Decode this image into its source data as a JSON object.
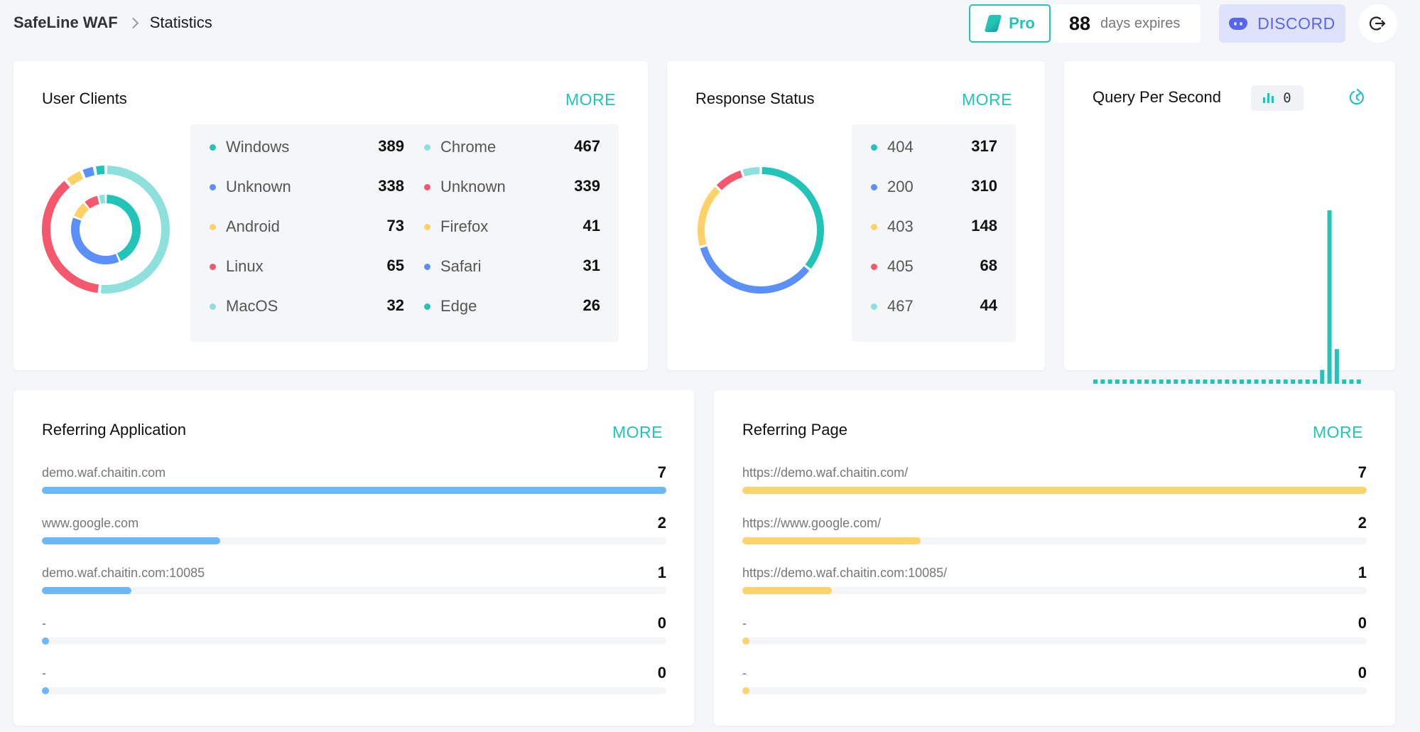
{
  "header": {
    "app_name": "SafeLine WAF",
    "page": "Statistics",
    "pro_label": "Pro",
    "days_count": "88",
    "days_label": "days expires",
    "discord_label": "DISCORD"
  },
  "colors": {
    "accent": "#23c4b8",
    "blue": "#5b8ff9",
    "yellow": "#ffd166",
    "red": "#f5576c",
    "light_teal": "#8ee0dd",
    "ref_app_bar": "#6bb8fb",
    "ref_page_bar": "#ffd36b"
  },
  "user_clients": {
    "title": "User Clients",
    "more": "MORE",
    "os": [
      {
        "name": "Windows",
        "value": 389,
        "color": "#23c4b8"
      },
      {
        "name": "Unknown",
        "value": 338,
        "color": "#5b8ff9"
      },
      {
        "name": "Android",
        "value": 73,
        "color": "#ffd166"
      },
      {
        "name": "Linux",
        "value": 65,
        "color": "#f5576c"
      },
      {
        "name": "MacOS",
        "value": 32,
        "color": "#8ee0dd"
      }
    ],
    "browsers": [
      {
        "name": "Chrome",
        "value": 467,
        "color": "#8ee0dd"
      },
      {
        "name": "Unknown",
        "value": 339,
        "color": "#f5576c"
      },
      {
        "name": "Firefox",
        "value": 41,
        "color": "#ffd166"
      },
      {
        "name": "Safari",
        "value": 31,
        "color": "#5b8ff9"
      },
      {
        "name": "Edge",
        "value": 26,
        "color": "#23c4b8"
      }
    ]
  },
  "response_status": {
    "title": "Response Status",
    "more": "MORE",
    "items": [
      {
        "name": "404",
        "value": 317,
        "color": "#23c4b8"
      },
      {
        "name": "200",
        "value": 310,
        "color": "#5b8ff9"
      },
      {
        "name": "403",
        "value": 148,
        "color": "#ffd166"
      },
      {
        "name": "405",
        "value": 68,
        "color": "#f5576c"
      },
      {
        "name": "467",
        "value": 44,
        "color": "#8ee0dd"
      }
    ]
  },
  "qps": {
    "title": "Query Per Second",
    "current": "0",
    "bars": [
      1,
      1,
      1,
      1,
      1,
      1,
      1,
      1,
      1,
      1,
      1,
      1,
      1,
      1,
      1,
      1,
      1,
      1,
      1,
      1,
      1,
      1,
      1,
      1,
      1,
      1,
      1,
      1,
      1,
      1,
      1,
      8,
      100,
      20,
      1,
      1,
      1
    ]
  },
  "referring_application": {
    "title": "Referring Application",
    "more": "MORE",
    "items": [
      {
        "label": "demo.waf.chaitin.com",
        "value": 7
      },
      {
        "label": "www.google.com",
        "value": 2
      },
      {
        "label": "demo.waf.chaitin.com:10085",
        "value": 1
      },
      {
        "label": "-",
        "value": 0
      },
      {
        "label": "-",
        "value": 0
      }
    ]
  },
  "referring_page": {
    "title": "Referring Page",
    "more": "MORE",
    "items": [
      {
        "label": "https://demo.waf.chaitin.com/",
        "value": 7
      },
      {
        "label": "https://www.google.com/",
        "value": 2
      },
      {
        "label": "https://demo.waf.chaitin.com:10085/",
        "value": 1
      },
      {
        "label": "-",
        "value": 0
      },
      {
        "label": "-",
        "value": 0
      }
    ]
  }
}
